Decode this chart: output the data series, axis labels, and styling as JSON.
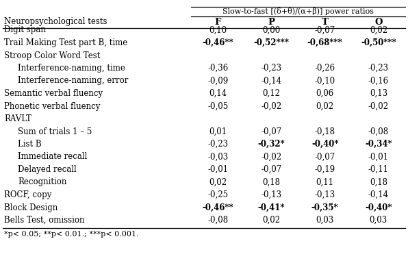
{
  "title_line1": "Slow-to-fast [(δ+θ)/(α+β)] power ratios",
  "col_headers": [
    "F",
    "P",
    "T",
    "O"
  ],
  "row_label_header": "Neuropsychological tests",
  "rows": [
    {
      "label": "Digit span",
      "indent": 0,
      "values": [
        "0,10",
        "0,00",
        "-0,07",
        "0,02"
      ],
      "bold": [
        false,
        false,
        false,
        false
      ]
    },
    {
      "label": "Trail Making Test part B, time",
      "indent": 0,
      "values": [
        "-0,46**",
        "-0,52***",
        "-0,68***",
        "-0,50***"
      ],
      "bold": [
        true,
        true,
        true,
        true
      ]
    },
    {
      "label": "Stroop Color Word Test",
      "indent": 0,
      "values": [
        "",
        "",
        "",
        ""
      ],
      "bold": [
        false,
        false,
        false,
        false
      ]
    },
    {
      "label": "Interference-naming, time",
      "indent": 1,
      "values": [
        "-0,36",
        "-0,23",
        "-0,26",
        "-0,23"
      ],
      "bold": [
        false,
        false,
        false,
        false
      ]
    },
    {
      "label": "Interference-naming, error",
      "indent": 1,
      "values": [
        "-0,09",
        "-0,14",
        "-0,10",
        "-0,16"
      ],
      "bold": [
        false,
        false,
        false,
        false
      ]
    },
    {
      "label": "Semantic verbal fluency",
      "indent": 0,
      "values": [
        "0,14",
        "0,12",
        "0,06",
        "0,13"
      ],
      "bold": [
        false,
        false,
        false,
        false
      ]
    },
    {
      "label": "Phonetic verbal fluency",
      "indent": 0,
      "values": [
        "-0,05",
        "-0,02",
        "0,02",
        "-0,02"
      ],
      "bold": [
        false,
        false,
        false,
        false
      ]
    },
    {
      "label": "RAVLT",
      "indent": 0,
      "values": [
        "",
        "",
        "",
        ""
      ],
      "bold": [
        false,
        false,
        false,
        false
      ]
    },
    {
      "label": "Sum of trials 1 – 5",
      "indent": 1,
      "values": [
        "0,01",
        "-0,07",
        "-0,18",
        "-0,08"
      ],
      "bold": [
        false,
        false,
        false,
        false
      ]
    },
    {
      "label": "List B",
      "indent": 1,
      "values": [
        "-0,23",
        "-0,32*",
        "-0,40*",
        "-0,34*"
      ],
      "bold": [
        false,
        true,
        true,
        true
      ]
    },
    {
      "label": "Immediate recall",
      "indent": 1,
      "values": [
        "-0,03",
        "-0,02",
        "-0,07",
        "-0,01"
      ],
      "bold": [
        false,
        false,
        false,
        false
      ]
    },
    {
      "label": "Delayed recall",
      "indent": 1,
      "values": [
        "-0,01",
        "-0,07",
        "-0,19",
        "-0,11"
      ],
      "bold": [
        false,
        false,
        false,
        false
      ]
    },
    {
      "label": "Recognition",
      "indent": 1,
      "values": [
        "0,02",
        "0,18",
        "0,11",
        "0,18"
      ],
      "bold": [
        false,
        false,
        false,
        false
      ]
    },
    {
      "label": "ROCF, copy",
      "indent": 0,
      "values": [
        "-0,25",
        "-0,13",
        "-0,13",
        "-0,14"
      ],
      "bold": [
        false,
        false,
        false,
        false
      ]
    },
    {
      "label": "Block Design",
      "indent": 0,
      "values": [
        "-0,46**",
        "-0,41*",
        "-0,35*",
        "-0,40*"
      ],
      "bold": [
        true,
        true,
        true,
        true
      ]
    },
    {
      "label": "Bells Test, omission",
      "indent": 0,
      "values": [
        "-0,08",
        "0,02",
        "0,03",
        "0,03"
      ],
      "bold": [
        false,
        false,
        false,
        false
      ]
    }
  ],
  "footnote": "*p< 0.05; **p< 0.01.; ***p< 0.001.",
  "bg_color": "#ffffff",
  "line_color": "#000000",
  "text_color": "#000000",
  "font_size": 8.5,
  "font_family": "serif"
}
